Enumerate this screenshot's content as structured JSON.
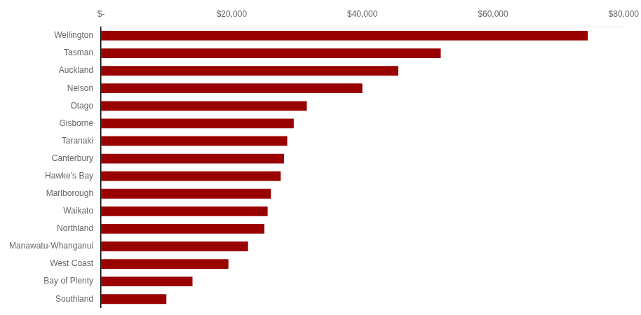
{
  "chart_data": {
    "type": "bar",
    "orientation": "horizontal",
    "categories": [
      "Wellington",
      "Tasman",
      "Auckland",
      "Nelson",
      "Otago",
      "Gisborne",
      "Taranaki",
      "Canterbury",
      "Hawke's Bay",
      "Marlborough",
      "Waikato",
      "Northland",
      "Manawatu-Whanganui",
      "West Coast",
      "Bay of Plenty",
      "Southland"
    ],
    "values": [
      74500,
      52000,
      45500,
      40000,
      31500,
      29500,
      28500,
      28000,
      27500,
      26000,
      25500,
      25000,
      22500,
      19500,
      14000,
      10000
    ],
    "color": "#990000",
    "xlim": [
      0,
      80000
    ],
    "xticks": [
      {
        "value": 0,
        "label": "$-"
      },
      {
        "value": 20000,
        "label": "$20,000"
      },
      {
        "value": 40000,
        "label": "$40,000"
      },
      {
        "value": 60000,
        "label": "$60,000"
      },
      {
        "value": 80000,
        "label": "$80,000"
      }
    ],
    "grid": false
  }
}
